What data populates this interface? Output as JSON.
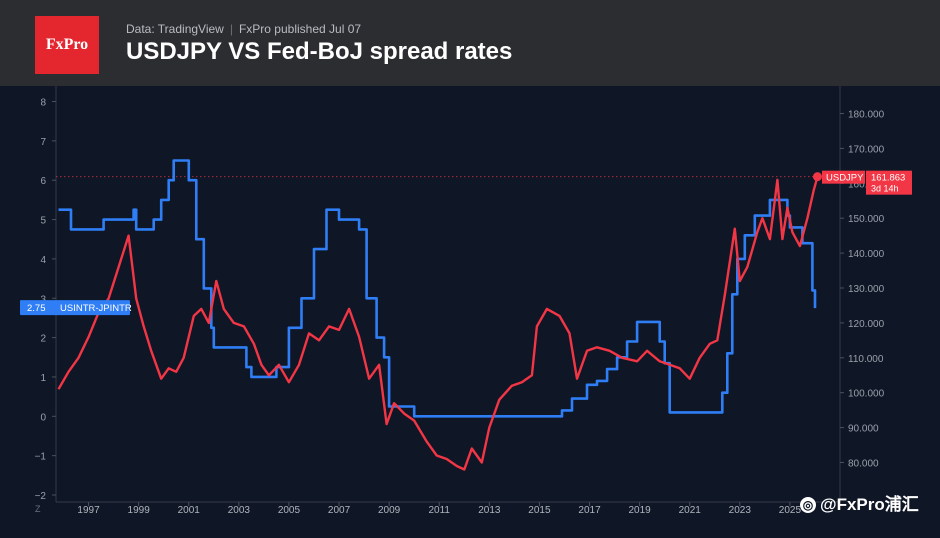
{
  "header": {
    "logo_text": "FxPro",
    "data_source": "Data: TradingView",
    "publisher": "FxPro published Jul 07",
    "title": "USDJPY VS Fed-BoJ spread rates"
  },
  "watermark": {
    "text": "@FxPro浦汇"
  },
  "colors": {
    "usdjpy": "#f23645",
    "spread": "#2f7ef5",
    "background": "#0f1626",
    "header": "#2b2d31"
  },
  "chart_data": {
    "type": "line",
    "title": "USDJPY VS Fed-BoJ spread rates",
    "x_ticks": [
      "1997",
      "1999",
      "2001",
      "2003",
      "2005",
      "2007",
      "2009",
      "2011",
      "2013",
      "2015",
      "2017",
      "2019",
      "2021",
      "2023",
      "2025"
    ],
    "x_range": [
      1995.7,
      2027.0
    ],
    "left_axis": {
      "ticks": [
        "−2",
        "−1",
        "0",
        "1",
        "2",
        "3",
        "4",
        "5",
        "6",
        "7",
        "8"
      ],
      "range": [
        -2,
        8
      ]
    },
    "right_axis": {
      "ticks": [
        "80.000",
        "90.000",
        "100.000",
        "110.000",
        "120.000",
        "130.000",
        "140.000",
        "150.000",
        "160.000",
        "170.000",
        "180.000"
      ],
      "range": [
        75,
        185
      ]
    },
    "scale_button": "Z",
    "series": [
      {
        "name": "USDJPY",
        "axis": "right",
        "last_value_label": "161.863",
        "countdown_label": "3d 14h",
        "x": [
          1995.8,
          1996.2,
          1996.6,
          1997.0,
          1997.4,
          1997.8,
          1998.2,
          1998.6,
          1998.9,
          1999.2,
          1999.5,
          1999.9,
          2000.2,
          2000.5,
          2000.8,
          2001.2,
          2001.5,
          2001.8,
          2002.1,
          2002.4,
          2002.8,
          2003.2,
          2003.6,
          2003.9,
          2004.2,
          2004.6,
          2005.0,
          2005.4,
          2005.8,
          2006.2,
          2006.6,
          2007.0,
          2007.4,
          2007.8,
          2008.2,
          2008.6,
          2008.9,
          2009.2,
          2009.6,
          2010.0,
          2010.5,
          2010.9,
          2011.3,
          2011.7,
          2012.0,
          2012.3,
          2012.7,
          2013.0,
          2013.4,
          2013.9,
          2014.3,
          2014.7,
          2014.9,
          2015.3,
          2015.8,
          2016.2,
          2016.5,
          2016.9,
          2017.3,
          2017.8,
          2018.3,
          2018.9,
          2019.3,
          2019.8,
          2020.2,
          2020.6,
          2021.0,
          2021.4,
          2021.8,
          2022.1,
          2022.4,
          2022.8,
          2023.0,
          2023.3,
          2023.7,
          2023.9,
          2024.2,
          2024.5,
          2024.7,
          2024.9,
          2025.1,
          2025.4,
          2025.7,
          2025.95,
          2026.1
        ],
        "y": [
          101,
          106,
          110,
          116,
          123,
          127,
          136,
          145,
          127,
          119,
          112,
          104,
          107,
          106,
          110,
          122,
          124,
          120,
          132,
          124,
          120,
          119,
          114,
          108,
          105,
          108,
          103,
          108,
          117,
          115,
          119,
          118,
          124,
          116,
          104,
          108,
          91,
          97,
          94,
          92,
          86,
          82,
          81,
          79,
          78,
          84,
          80,
          90,
          98,
          102,
          103,
          105,
          119,
          124,
          122,
          117,
          104,
          112,
          113,
          112,
          110,
          109,
          112,
          109,
          108,
          107,
          104,
          110,
          114,
          115,
          128,
          147,
          132,
          136,
          146,
          150,
          144,
          161,
          144,
          153,
          146,
          142,
          150,
          158,
          161.9
        ]
      },
      {
        "name": "USINTR-JPINTR",
        "axis": "left",
        "last_value_label": "2.75",
        "x": [
          1995.8,
          1996.0,
          1996.3,
          1997.0,
          1997.6,
          1998.0,
          1998.3,
          1998.6,
          1998.8,
          1998.9,
          1999.2,
          1999.6,
          1999.9,
          2000.2,
          2000.4,
          2000.8,
          2001.0,
          2001.3,
          2001.6,
          2001.9,
          2002.0,
          2002.9,
          2003.3,
          2003.5,
          2004.0,
          2004.5,
          2005.0,
          2005.5,
          2006.0,
          2006.5,
          2007.0,
          2007.5,
          2007.8,
          2008.1,
          2008.5,
          2008.8,
          2009.0,
          2010.0,
          2010.9,
          2012.0,
          2013.0,
          2014.0,
          2015.0,
          2015.9,
          2016.3,
          2016.9,
          2017.3,
          2017.7,
          2018.1,
          2018.5,
          2018.9,
          2019.5,
          2019.8,
          2020.0,
          2020.2,
          2021.0,
          2022.0,
          2022.3,
          2022.5,
          2022.7,
          2022.9,
          2023.2,
          2023.6,
          2024.2,
          2024.7,
          2024.9,
          2025.0,
          2025.5,
          2025.9,
          2026.0
        ],
        "y": [
          5.25,
          5.25,
          4.75,
          4.75,
          5.0,
          5.0,
          5.0,
          5.0,
          5.25,
          4.75,
          4.75,
          5.0,
          5.5,
          6.0,
          6.5,
          6.5,
          6.0,
          4.5,
          3.25,
          2.25,
          1.75,
          1.75,
          1.25,
          1.0,
          1.0,
          1.25,
          2.25,
          3.0,
          4.25,
          5.25,
          5.0,
          5.0,
          4.75,
          3.0,
          2.0,
          1.5,
          0.25,
          0.0,
          0.0,
          0.0,
          0.0,
          0.0,
          0.0,
          0.15,
          0.45,
          0.8,
          0.9,
          1.2,
          1.5,
          1.9,
          2.4,
          2.4,
          1.9,
          1.35,
          0.1,
          0.1,
          0.1,
          0.6,
          1.6,
          3.1,
          4.0,
          4.6,
          5.1,
          5.5,
          5.5,
          5.1,
          4.8,
          4.4,
          3.2,
          2.75
        ]
      }
    ]
  }
}
